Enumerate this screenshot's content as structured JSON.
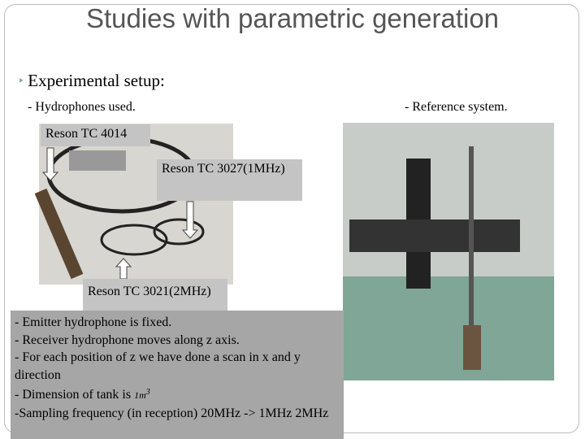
{
  "header": {
    "title": "Studies with parametric generation"
  },
  "bullet": "Experimental setup:",
  "left_heading": "- Hydrophones used.",
  "right_heading": "- Reference system.",
  "labels": [
    "Reson TC 4014",
    "Reson TC 3027(1MHz)",
    "Reson TC 3021(2MHz)"
  ],
  "notes": [
    "- Emitter hydrophone  is fixed.",
    "- Receiver hydrophone moves along z axis.",
    "- For each position of z we have done a scan in x and y direction",
    "- Dimension of tank is",
    "-Sampling frequency (in reception)  20MHz -> 1MHz 2MHz"
  ],
  "tank_unit": {
    "base": "1m",
    "exponent": "3"
  }
}
